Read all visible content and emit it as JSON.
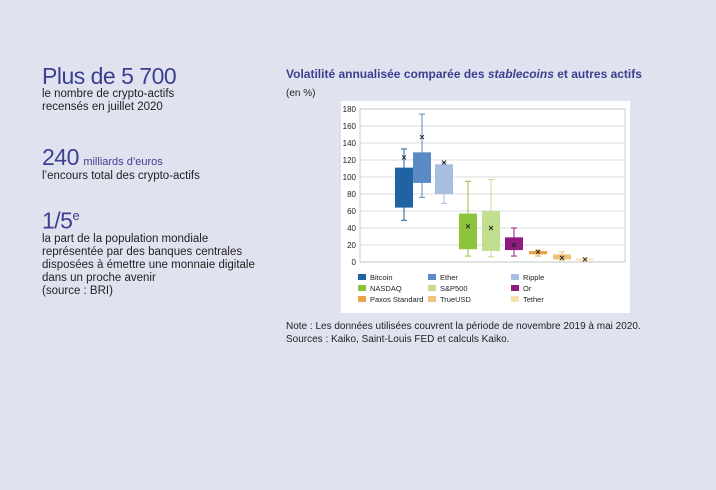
{
  "stats": [
    {
      "value": "Plus de 5 700",
      "unit": "",
      "description": [
        "le nombre de crypto-actifs",
        "recensés en juillet 2020"
      ]
    },
    {
      "value": "240",
      "unit": "milliards d’euros",
      "description": [
        "l’encours total des crypto-actifs"
      ]
    },
    {
      "value": "1/5",
      "superscript": "e",
      "description": [
        "la part de la population mondiale",
        "représentée par des banques centrales",
        "disposées à émettre une monnaie digitale",
        "dans un proche avenir",
        "(source : BRI)"
      ]
    }
  ],
  "chart_title_prefix": "Volatilité annualisée comparée des ",
  "chart_title_italic": "stablecoins",
  "chart_title_suffix": " et autres actifs",
  "unit_label": "(en %)",
  "note_lines": [
    "Note : Les données utilisées couvrent la période de novembre 2019 à mai 2020.",
    "Sources : Kaiko, Saint-Louis FED et calculs Kaiko."
  ],
  "chart_data": {
    "type": "box",
    "ylim": [
      0,
      180
    ],
    "yticks": [
      0,
      20,
      40,
      60,
      80,
      100,
      120,
      140,
      160,
      180
    ],
    "grid": true,
    "series": [
      {
        "name": "Bitcoin",
        "color": "#1f63a3",
        "min": 49,
        "q1": 64,
        "q3": 111,
        "max": 133,
        "mean": 123
      },
      {
        "name": "Ether",
        "color": "#5b8ac4",
        "min": 76,
        "q1": 93,
        "q3": 129,
        "max": 174,
        "mean": 147
      },
      {
        "name": "Ripple",
        "color": "#a8bedf",
        "min": 69,
        "q1": 80,
        "q3": 115,
        "max": 117,
        "mean": 117
      },
      {
        "name": "NASDAQ",
        "color": "#8cc43e",
        "min": 7,
        "q1": 15,
        "q3": 57,
        "max": 95,
        "mean": 42
      },
      {
        "name": "S&P500",
        "color": "#c2df90",
        "min": 6,
        "q1": 13,
        "q3": 60,
        "max": 97,
        "mean": 40
      },
      {
        "name": "Or",
        "color": "#8e1b80",
        "min": 7,
        "q1": 14,
        "q3": 29,
        "max": 40,
        "mean": 20
      },
      {
        "name": "Paxos Standard",
        "color": "#e7a24a",
        "min": 7,
        "q1": 9,
        "q3": 13,
        "max": 14,
        "mean": 12
      },
      {
        "name": "TrueUSD",
        "color": "#f0c27a",
        "min": 2,
        "q1": 3,
        "q3": 9,
        "max": 12,
        "mean": 5
      },
      {
        "name": "Tether",
        "color": "#f7e0b2",
        "min": 1,
        "q1": 2,
        "q3": 4,
        "max": 5,
        "mean": 3
      }
    ]
  }
}
